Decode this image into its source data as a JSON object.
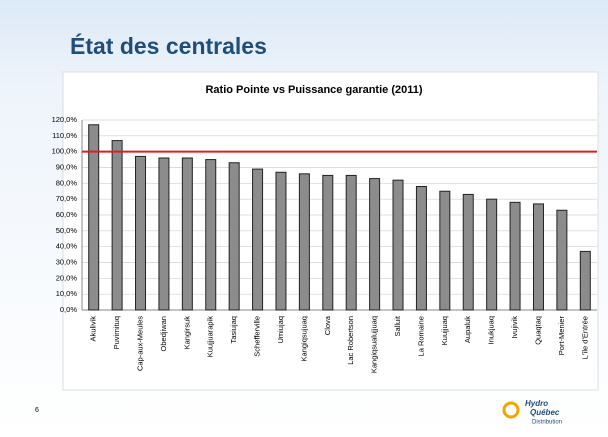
{
  "slide": {
    "title": "État des centrales",
    "page_number": "6",
    "logo": [
      "Hydro",
      "Québec",
      "Distribution"
    ]
  },
  "chart_data": {
    "type": "bar",
    "title": "Ratio Pointe vs Puissance garantie (2011)",
    "categories": [
      "Akulivik",
      "Puvirnituq",
      "Cap-aux-Meules",
      "Obedjiwan",
      "Kangirsuk",
      "Kuujjuarapik",
      "Tasiujaq",
      "Schefferville",
      "Umiujaq",
      "Kangiqsujuaq",
      "Clova",
      "Lac Robertson",
      "Kangiqsualujjuaq",
      "Salluit",
      "La Romaine",
      "Kuujjuaq",
      "Aupaluk",
      "Inukjuaq",
      "Ivujivik",
      "Quaqtaq",
      "Port-Menier",
      "L'île d'Entrée"
    ],
    "values": [
      117,
      107,
      97,
      96,
      96,
      95,
      93,
      89,
      87,
      86,
      85,
      85,
      83,
      82,
      78,
      75,
      73,
      70,
      68,
      67,
      63,
      37
    ],
    "color": "#8c8c8c",
    "ylim": [
      0,
      120
    ],
    "yticks": [
      {
        "value": 0,
        "label": "0,0%"
      },
      {
        "value": 10,
        "label": "10,0%"
      },
      {
        "value": 20,
        "label": "20,0%"
      },
      {
        "value": 30,
        "label": "30,0%"
      },
      {
        "value": 40,
        "label": "40,0%"
      },
      {
        "value": 50,
        "label": "50,0%"
      },
      {
        "value": 60,
        "label": "60,0%"
      },
      {
        "value": 70,
        "label": "70,0%"
      },
      {
        "value": 80,
        "label": "80,0%"
      },
      {
        "value": 90,
        "label": "90,0%"
      },
      {
        "value": 100,
        "label": "100,0%"
      },
      {
        "value": 110,
        "label": "110,0%"
      },
      {
        "value": 120,
        "label": "120,0%"
      }
    ],
    "grid": true,
    "reference_line": {
      "value": 100,
      "color": "#e01e1e"
    }
  }
}
